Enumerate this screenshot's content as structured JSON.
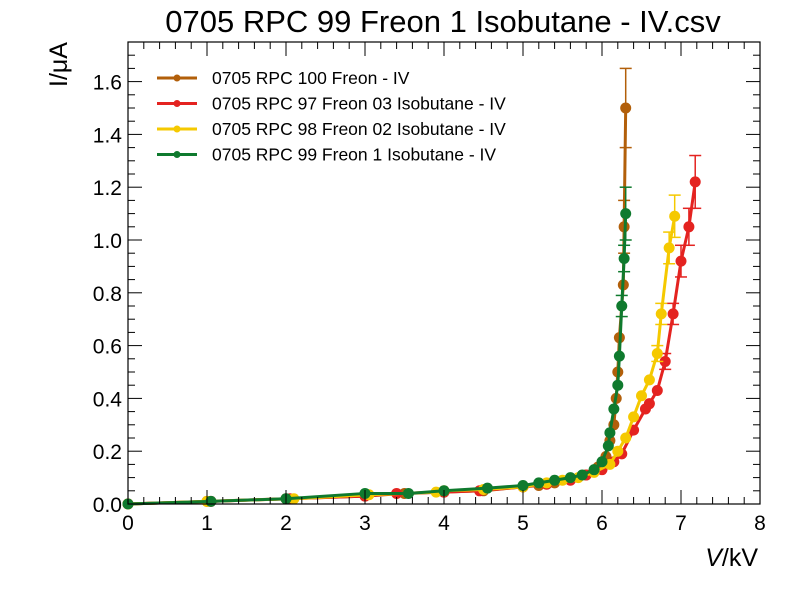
{
  "chart_data": {
    "type": "line",
    "title": "0705 RPC 99 Freon 1 Isobutane - IV.csv",
    "xlabel_italic": "V",
    "xlabel_unit": "/kV",
    "ylabel": "I/μA",
    "xlim": [
      0,
      8
    ],
    "ylim": [
      0,
      1.75
    ],
    "xticks": [
      "0",
      "1",
      "2",
      "3",
      "4",
      "5",
      "6",
      "7",
      "8"
    ],
    "yticks": [
      "0.0",
      "0.2",
      "0.4",
      "0.6",
      "0.8",
      "1.0",
      "1.2",
      "1.4",
      "1.6"
    ],
    "grid": false,
    "legend_position": "top-left",
    "series": [
      {
        "name": "0705 RPC 100 Freon - IV",
        "color": "#b25f0a",
        "points": [
          [
            0,
            0,
            0
          ],
          [
            1.0,
            0.01,
            0
          ],
          [
            2.0,
            0.02,
            0
          ],
          [
            3.0,
            0.03,
            0
          ],
          [
            3.5,
            0.04,
            0
          ],
          [
            4.0,
            0.045,
            0
          ],
          [
            4.5,
            0.05,
            0
          ],
          [
            5.0,
            0.065,
            0
          ],
          [
            5.2,
            0.07,
            0
          ],
          [
            5.4,
            0.08,
            0
          ],
          [
            5.6,
            0.095,
            0
          ],
          [
            5.8,
            0.11,
            0
          ],
          [
            5.95,
            0.14,
            0
          ],
          [
            6.05,
            0.18,
            0
          ],
          [
            6.1,
            0.24,
            0
          ],
          [
            6.15,
            0.3,
            0
          ],
          [
            6.18,
            0.4,
            0
          ],
          [
            6.2,
            0.5,
            0
          ],
          [
            6.22,
            0.63,
            0
          ],
          [
            6.27,
            0.83,
            0
          ],
          [
            6.28,
            1.05,
            0.1
          ],
          [
            6.3,
            1.5,
            0.15
          ]
        ]
      },
      {
        "name": "0705 RPC 97 Freon 03 Isobutane - IV",
        "color": "#e42320",
        "points": [
          [
            0,
            0,
            0
          ],
          [
            1.05,
            0.01,
            0
          ],
          [
            2.05,
            0.02,
            0
          ],
          [
            3.0,
            0.03,
            0
          ],
          [
            3.4,
            0.04,
            0
          ],
          [
            4.0,
            0.045,
            0
          ],
          [
            4.45,
            0.05,
            0
          ],
          [
            5.0,
            0.065,
            0
          ],
          [
            5.3,
            0.075,
            0
          ],
          [
            5.6,
            0.09,
            0
          ],
          [
            5.8,
            0.11,
            0
          ],
          [
            6.0,
            0.13,
            0
          ],
          [
            6.15,
            0.16,
            0
          ],
          [
            6.25,
            0.19,
            0
          ],
          [
            6.4,
            0.28,
            0
          ],
          [
            6.55,
            0.36,
            0
          ],
          [
            6.6,
            0.38,
            0
          ],
          [
            6.7,
            0.43,
            0
          ],
          [
            6.8,
            0.54,
            0.03
          ],
          [
            6.9,
            0.72,
            0.04
          ],
          [
            7.0,
            0.92,
            0.06
          ],
          [
            7.1,
            1.05,
            0.07
          ],
          [
            7.18,
            1.22,
            0.1
          ]
        ]
      },
      {
        "name": "0705 RPC 98 Freon 02 Isobutane - IV",
        "color": "#f5c900",
        "points": [
          [
            0,
            0,
            0
          ],
          [
            1.0,
            0.01,
            0
          ],
          [
            2.1,
            0.02,
            0
          ],
          [
            3.05,
            0.035,
            0
          ],
          [
            3.9,
            0.045,
            0
          ],
          [
            4.0,
            0.05,
            0
          ],
          [
            4.5,
            0.055,
            0
          ],
          [
            5.0,
            0.065,
            0
          ],
          [
            5.3,
            0.08,
            0
          ],
          [
            5.5,
            0.09,
            0
          ],
          [
            5.7,
            0.1,
            0
          ],
          [
            5.9,
            0.12,
            0
          ],
          [
            6.1,
            0.15,
            0
          ],
          [
            6.2,
            0.2,
            0
          ],
          [
            6.3,
            0.25,
            0
          ],
          [
            6.4,
            0.33,
            0
          ],
          [
            6.5,
            0.41,
            0
          ],
          [
            6.6,
            0.47,
            0
          ],
          [
            6.7,
            0.57,
            0.03
          ],
          [
            6.75,
            0.72,
            0.04
          ],
          [
            6.85,
            0.97,
            0.06
          ],
          [
            6.92,
            1.09,
            0.08
          ]
        ]
      },
      {
        "name": "0705 RPC 99 Freon 1 Isobutane - IV",
        "color": "#0f7a2e",
        "points": [
          [
            0,
            0,
            0
          ],
          [
            1.05,
            0.01,
            0
          ],
          [
            2.0,
            0.02,
            0
          ],
          [
            3.0,
            0.04,
            0
          ],
          [
            3.55,
            0.04,
            0
          ],
          [
            4.0,
            0.05,
            0
          ],
          [
            4.55,
            0.06,
            0
          ],
          [
            5.0,
            0.07,
            0
          ],
          [
            5.2,
            0.08,
            0
          ],
          [
            5.4,
            0.09,
            0
          ],
          [
            5.6,
            0.1,
            0
          ],
          [
            5.75,
            0.11,
            0
          ],
          [
            5.9,
            0.13,
            0
          ],
          [
            6.0,
            0.16,
            0
          ],
          [
            6.08,
            0.22,
            0
          ],
          [
            6.1,
            0.27,
            0
          ],
          [
            6.15,
            0.36,
            0
          ],
          [
            6.2,
            0.45,
            0
          ],
          [
            6.22,
            0.56,
            0
          ],
          [
            6.25,
            0.75,
            0.04
          ],
          [
            6.28,
            0.93,
            0.05
          ],
          [
            6.3,
            1.1,
            0.1
          ]
        ]
      }
    ]
  }
}
